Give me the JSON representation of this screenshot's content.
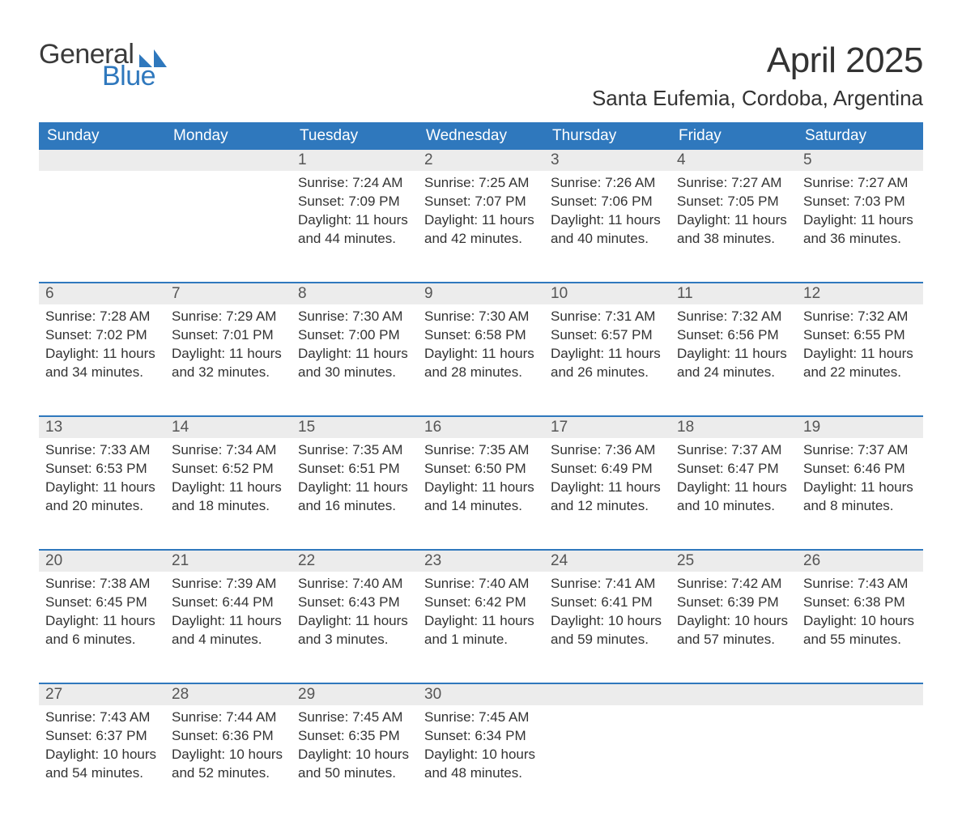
{
  "logo": {
    "word1": "General",
    "word2": "Blue",
    "brand_color": "#2f78bd",
    "text_color": "#3b3b3b"
  },
  "title": "April 2025",
  "location": "Santa Eufemia, Cordoba, Argentina",
  "layout": {
    "page_bg": "#ffffff",
    "header_bg": "#2f78bd",
    "header_text": "#ffffff",
    "daynum_bg": "#ececec",
    "week_border": "#2f78bd",
    "body_text": "#333333",
    "columns": 7,
    "weeks": 5,
    "title_fontsize_pt": 33,
    "location_fontsize_pt": 20,
    "header_fontsize_pt": 14,
    "body_fontsize_pt": 13
  },
  "day_headers": [
    "Sunday",
    "Monday",
    "Tuesday",
    "Wednesday",
    "Thursday",
    "Friday",
    "Saturday"
  ],
  "weeks": [
    [
      null,
      null,
      {
        "n": "1",
        "sr": "7:24 AM",
        "ss": "7:09 PM",
        "dl": "11 hours and 44 minutes."
      },
      {
        "n": "2",
        "sr": "7:25 AM",
        "ss": "7:07 PM",
        "dl": "11 hours and 42 minutes."
      },
      {
        "n": "3",
        "sr": "7:26 AM",
        "ss": "7:06 PM",
        "dl": "11 hours and 40 minutes."
      },
      {
        "n": "4",
        "sr": "7:27 AM",
        "ss": "7:05 PM",
        "dl": "11 hours and 38 minutes."
      },
      {
        "n": "5",
        "sr": "7:27 AM",
        "ss": "7:03 PM",
        "dl": "11 hours and 36 minutes."
      }
    ],
    [
      {
        "n": "6",
        "sr": "7:28 AM",
        "ss": "7:02 PM",
        "dl": "11 hours and 34 minutes."
      },
      {
        "n": "7",
        "sr": "7:29 AM",
        "ss": "7:01 PM",
        "dl": "11 hours and 32 minutes."
      },
      {
        "n": "8",
        "sr": "7:30 AM",
        "ss": "7:00 PM",
        "dl": "11 hours and 30 minutes."
      },
      {
        "n": "9",
        "sr": "7:30 AM",
        "ss": "6:58 PM",
        "dl": "11 hours and 28 minutes."
      },
      {
        "n": "10",
        "sr": "7:31 AM",
        "ss": "6:57 PM",
        "dl": "11 hours and 26 minutes."
      },
      {
        "n": "11",
        "sr": "7:32 AM",
        "ss": "6:56 PM",
        "dl": "11 hours and 24 minutes."
      },
      {
        "n": "12",
        "sr": "7:32 AM",
        "ss": "6:55 PM",
        "dl": "11 hours and 22 minutes."
      }
    ],
    [
      {
        "n": "13",
        "sr": "7:33 AM",
        "ss": "6:53 PM",
        "dl": "11 hours and 20 minutes."
      },
      {
        "n": "14",
        "sr": "7:34 AM",
        "ss": "6:52 PM",
        "dl": "11 hours and 18 minutes."
      },
      {
        "n": "15",
        "sr": "7:35 AM",
        "ss": "6:51 PM",
        "dl": "11 hours and 16 minutes."
      },
      {
        "n": "16",
        "sr": "7:35 AM",
        "ss": "6:50 PM",
        "dl": "11 hours and 14 minutes."
      },
      {
        "n": "17",
        "sr": "7:36 AM",
        "ss": "6:49 PM",
        "dl": "11 hours and 12 minutes."
      },
      {
        "n": "18",
        "sr": "7:37 AM",
        "ss": "6:47 PM",
        "dl": "11 hours and 10 minutes."
      },
      {
        "n": "19",
        "sr": "7:37 AM",
        "ss": "6:46 PM",
        "dl": "11 hours and 8 minutes."
      }
    ],
    [
      {
        "n": "20",
        "sr": "7:38 AM",
        "ss": "6:45 PM",
        "dl": "11 hours and 6 minutes."
      },
      {
        "n": "21",
        "sr": "7:39 AM",
        "ss": "6:44 PM",
        "dl": "11 hours and 4 minutes."
      },
      {
        "n": "22",
        "sr": "7:40 AM",
        "ss": "6:43 PM",
        "dl": "11 hours and 3 minutes."
      },
      {
        "n": "23",
        "sr": "7:40 AM",
        "ss": "6:42 PM",
        "dl": "11 hours and 1 minute."
      },
      {
        "n": "24",
        "sr": "7:41 AM",
        "ss": "6:41 PM",
        "dl": "10 hours and 59 minutes."
      },
      {
        "n": "25",
        "sr": "7:42 AM",
        "ss": "6:39 PM",
        "dl": "10 hours and 57 minutes."
      },
      {
        "n": "26",
        "sr": "7:43 AM",
        "ss": "6:38 PM",
        "dl": "10 hours and 55 minutes."
      }
    ],
    [
      {
        "n": "27",
        "sr": "7:43 AM",
        "ss": "6:37 PM",
        "dl": "10 hours and 54 minutes."
      },
      {
        "n": "28",
        "sr": "7:44 AM",
        "ss": "6:36 PM",
        "dl": "10 hours and 52 minutes."
      },
      {
        "n": "29",
        "sr": "7:45 AM",
        "ss": "6:35 PM",
        "dl": "10 hours and 50 minutes."
      },
      {
        "n": "30",
        "sr": "7:45 AM",
        "ss": "6:34 PM",
        "dl": "10 hours and 48 minutes."
      },
      null,
      null,
      null
    ]
  ],
  "labels": {
    "sunrise": "Sunrise: ",
    "sunset": "Sunset: ",
    "daylight": "Daylight: "
  }
}
